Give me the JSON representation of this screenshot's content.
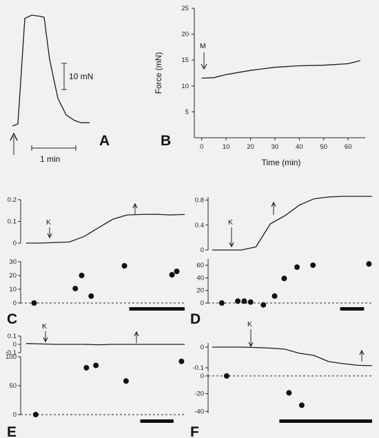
{
  "chart_data": [
    {
      "panel": "A",
      "type": "line",
      "scalebar_force_label": "10 mN",
      "scalebar_time_label": "1 min",
      "y": [
        0,
        0.02,
        0.97,
        1.0,
        0.99,
        0.98,
        0.6,
        0.25,
        0.1,
        0.05,
        0.03,
        0.03
      ]
    },
    {
      "panel": "B",
      "type": "line",
      "ylabel": "Force (mN)",
      "xlabel": "Time (min)",
      "xlim": [
        -3,
        67
      ],
      "ylim": [
        0,
        25
      ],
      "xticks": [
        "0",
        "10",
        "20",
        "30",
        "40",
        "50",
        "60"
      ],
      "yticks": [
        "5",
        "10",
        "15",
        "20",
        "25"
      ],
      "annotation": "M",
      "x": [
        0,
        5,
        10,
        20,
        30,
        40,
        50,
        60,
        65
      ],
      "y": [
        11.5,
        11.6,
        12.2,
        13.0,
        13.6,
        13.9,
        14.0,
        14.3,
        14.9
      ]
    },
    {
      "panel": "C",
      "type": "line+scatter",
      "annotation": "K",
      "top_yticks": [
        "0",
        "0.1",
        "0.2"
      ],
      "top_ylim": [
        0,
        0.2
      ],
      "top_line": [
        0,
        0,
        0.003,
        0.005,
        0.03,
        0.07,
        0.11,
        0.13,
        0.132,
        0.133,
        0.13,
        0.132
      ],
      "bottom_yticks": [
        "0",
        "10",
        "20",
        "30"
      ],
      "bottom_ylim": [
        0,
        30
      ],
      "scatter_x": [
        0.05,
        0.31,
        0.35,
        0.41,
        0.62,
        0.92,
        0.95
      ],
      "scatter_y": [
        0,
        10.5,
        20,
        5,
        27,
        20.5,
        23
      ],
      "bar_span": [
        0.65,
        1.0
      ]
    },
    {
      "panel": "D",
      "type": "line+scatter",
      "annotation": "K",
      "top_yticks": [
        "0",
        "0.4",
        "0.8"
      ],
      "top_ylim": [
        0,
        0.85
      ],
      "top_line": [
        0,
        0,
        0.0,
        0.05,
        0.42,
        0.55,
        0.72,
        0.82,
        0.85,
        0.86,
        0.86,
        0.86
      ],
      "bottom_yticks": [
        "0",
        "20",
        "40",
        "60"
      ],
      "bottom_ylim": [
        0,
        70
      ],
      "scatter_x": [
        0.06,
        0.16,
        0.2,
        0.24,
        0.32,
        0.39,
        0.45,
        0.53,
        0.63,
        0.98
      ],
      "scatter_y": [
        0,
        3,
        3,
        1.5,
        -3,
        11,
        39,
        57,
        60,
        62
      ],
      "bar_span": [
        0.8,
        0.95
      ]
    },
    {
      "panel": "E",
      "type": "line+scatter",
      "annotation": "K",
      "top_yticks": [
        "0.1",
        "0",
        "-0.1"
      ],
      "top_ylim": [
        -0.1,
        0.1
      ],
      "top_line": [
        0.01,
        0.005,
        0.0,
        0.0,
        0.0,
        -0.005,
        0.0,
        0.0,
        0.0,
        0.0,
        0.0,
        0.0
      ],
      "bottom_yticks": [
        "0",
        "50",
        "100"
      ],
      "bottom_ylim": [
        0,
        100
      ],
      "scatter_x": [
        0.06,
        0.38,
        0.44,
        0.63,
        0.98
      ],
      "scatter_y": [
        0,
        81,
        85,
        58,
        92
      ],
      "bar_span": [
        0.72,
        0.93
      ]
    },
    {
      "panel": "F",
      "type": "line+scatter",
      "top_yticks": [
        "0",
        "-0.1"
      ],
      "top_ylim": [
        -0.12,
        0.02
      ],
      "top_line": [
        0.0,
        0.0,
        0.0,
        -0.002,
        -0.005,
        -0.01,
        -0.03,
        -0.04,
        -0.07,
        -0.08,
        -0.088,
        -0.09
      ],
      "bottom_yticks": [
        "0",
        "-20",
        "-40"
      ],
      "bottom_ylim": [
        -42,
        3
      ],
      "scatter_x": [
        0.09,
        0.48,
        0.56
      ],
      "scatter_y": [
        0,
        -19,
        -33
      ],
      "bar_span": [
        0.42,
        1.0
      ],
      "annotation": "K"
    }
  ],
  "panel_letters": [
    "A",
    "B",
    "C",
    "D",
    "E",
    "F"
  ]
}
